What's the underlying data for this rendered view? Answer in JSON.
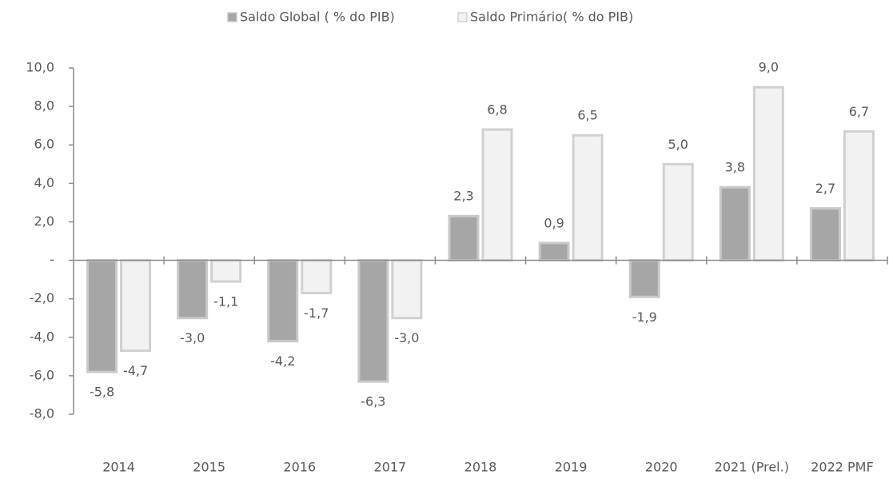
{
  "chart_data": {
    "type": "bar",
    "categories": [
      "2014",
      "2015",
      "2016",
      "2017",
      "2018",
      "2019",
      "2020",
      "2021 (Prel.)",
      "2022  PMF"
    ],
    "series": [
      {
        "name": "Saldo Global ( % do PIB)",
        "color": "#a6a6a6",
        "values": [
          -5.8,
          -3.0,
          -4.2,
          -6.3,
          2.3,
          0.9,
          -1.9,
          3.8,
          2.7
        ],
        "value_labels": [
          "-5,8",
          "-3,0",
          "-4,2",
          "-6,3",
          "2,3",
          "0,9",
          "-1,9",
          "3,8",
          "2,7"
        ]
      },
      {
        "name": "Saldo Primário( % do PIB)",
        "color": "#f2f2f2",
        "values": [
          -4.7,
          -1.1,
          -1.7,
          -3.0,
          6.8,
          6.5,
          5.0,
          9.0,
          6.7
        ],
        "value_labels": [
          "-4,7",
          "-1,1",
          "-1,7",
          "-3,0",
          "6,8",
          "6,5",
          "5,0",
          "9,0",
          "6,7"
        ]
      }
    ],
    "ylim": [
      -8,
      10
    ],
    "yticks": [
      {
        "value": 10,
        "label": "10,0"
      },
      {
        "value": 8,
        "label": "8,0"
      },
      {
        "value": 6,
        "label": "6,0"
      },
      {
        "value": 4,
        "label": "4,0"
      },
      {
        "value": 2,
        "label": "2,0"
      },
      {
        "value": 0,
        "label": "-"
      },
      {
        "value": -2,
        "label": "-2,0"
      },
      {
        "value": -4,
        "label": "-4,0"
      },
      {
        "value": -6,
        "label": "-6,0"
      },
      {
        "value": -8,
        "label": "-8,0"
      }
    ],
    "legend": "top"
  }
}
